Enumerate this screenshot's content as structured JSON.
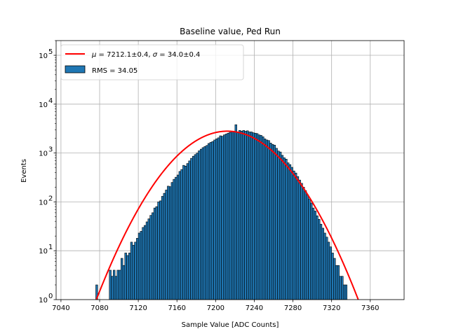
{
  "chart_data": {
    "type": "bar",
    "title": "Baseline value, Ped Run",
    "xlabel": "Sample Value [ADC Counts]",
    "ylabel": "Events",
    "xlim": [
      7035,
      7395
    ],
    "ylim": [
      1,
      200000
    ],
    "yscale": "log",
    "grid": true,
    "legend_position": "top-left",
    "x_ticks": [
      7040,
      7080,
      7120,
      7160,
      7200,
      7240,
      7280,
      7320,
      7360
    ],
    "y_ticks": [
      {
        "value": 1,
        "label": "10",
        "exp": "0"
      },
      {
        "value": 10,
        "label": "10",
        "exp": "1"
      },
      {
        "value": 100,
        "label": "10",
        "exp": "2"
      },
      {
        "value": 1000,
        "label": "10",
        "exp": "3"
      },
      {
        "value": 10000,
        "label": "10",
        "exp": "4"
      },
      {
        "value": 100000,
        "label": "10",
        "exp": "5"
      }
    ],
    "histogram": {
      "name": "RMS = 34.05",
      "color": "#1f77b4",
      "edge_color": "#000000",
      "bin_width": 2,
      "bin_start": 7076,
      "counts": [
        2,
        0,
        0,
        1,
        1,
        1,
        1,
        4,
        3,
        4,
        3,
        4,
        4,
        7,
        5,
        9,
        8,
        9,
        15,
        13,
        15,
        18,
        23,
        25,
        30,
        33,
        39,
        45,
        53,
        60,
        75,
        80,
        100,
        105,
        130,
        150,
        175,
        210,
        205,
        250,
        290,
        320,
        355,
        420,
        460,
        560,
        540,
        610,
        690,
        780,
        860,
        930,
        1000,
        1110,
        1200,
        1290,
        1360,
        1430,
        1570,
        1650,
        1720,
        1850,
        1950,
        2050,
        2250,
        2200,
        2350,
        2450,
        2550,
        2650,
        2800,
        2700,
        3800,
        2700,
        2900,
        2800,
        2900,
        2800,
        2850,
        2700,
        2700,
        2600,
        2550,
        2500,
        2350,
        2300,
        2150,
        1950,
        1850,
        1800,
        1600,
        1500,
        1450,
        1250,
        1100,
        1050,
        900,
        800,
        750,
        630,
        580,
        510,
        430,
        390,
        330,
        280,
        240,
        200,
        170,
        140,
        115,
        95,
        75,
        65,
        52,
        44,
        35,
        29,
        23,
        19,
        15,
        12,
        9,
        7,
        5,
        5,
        3,
        3,
        2,
        2,
        1,
        1,
        1,
        1,
        1
      ]
    },
    "fit": {
      "name": "$\\mu = 7212.1 \\pm 0.4$, $\\sigma = 34.0 \\pm 0.4$",
      "mu_label": "μ",
      "sigma_label": "σ",
      "legend_text_mid": " = 7212.1±0.4, ",
      "legend_text_end": " = 34.0±0.4",
      "color": "#ff0000",
      "mu": 7212.1,
      "sigma": 34.0,
      "amplitude": 2800
    }
  }
}
